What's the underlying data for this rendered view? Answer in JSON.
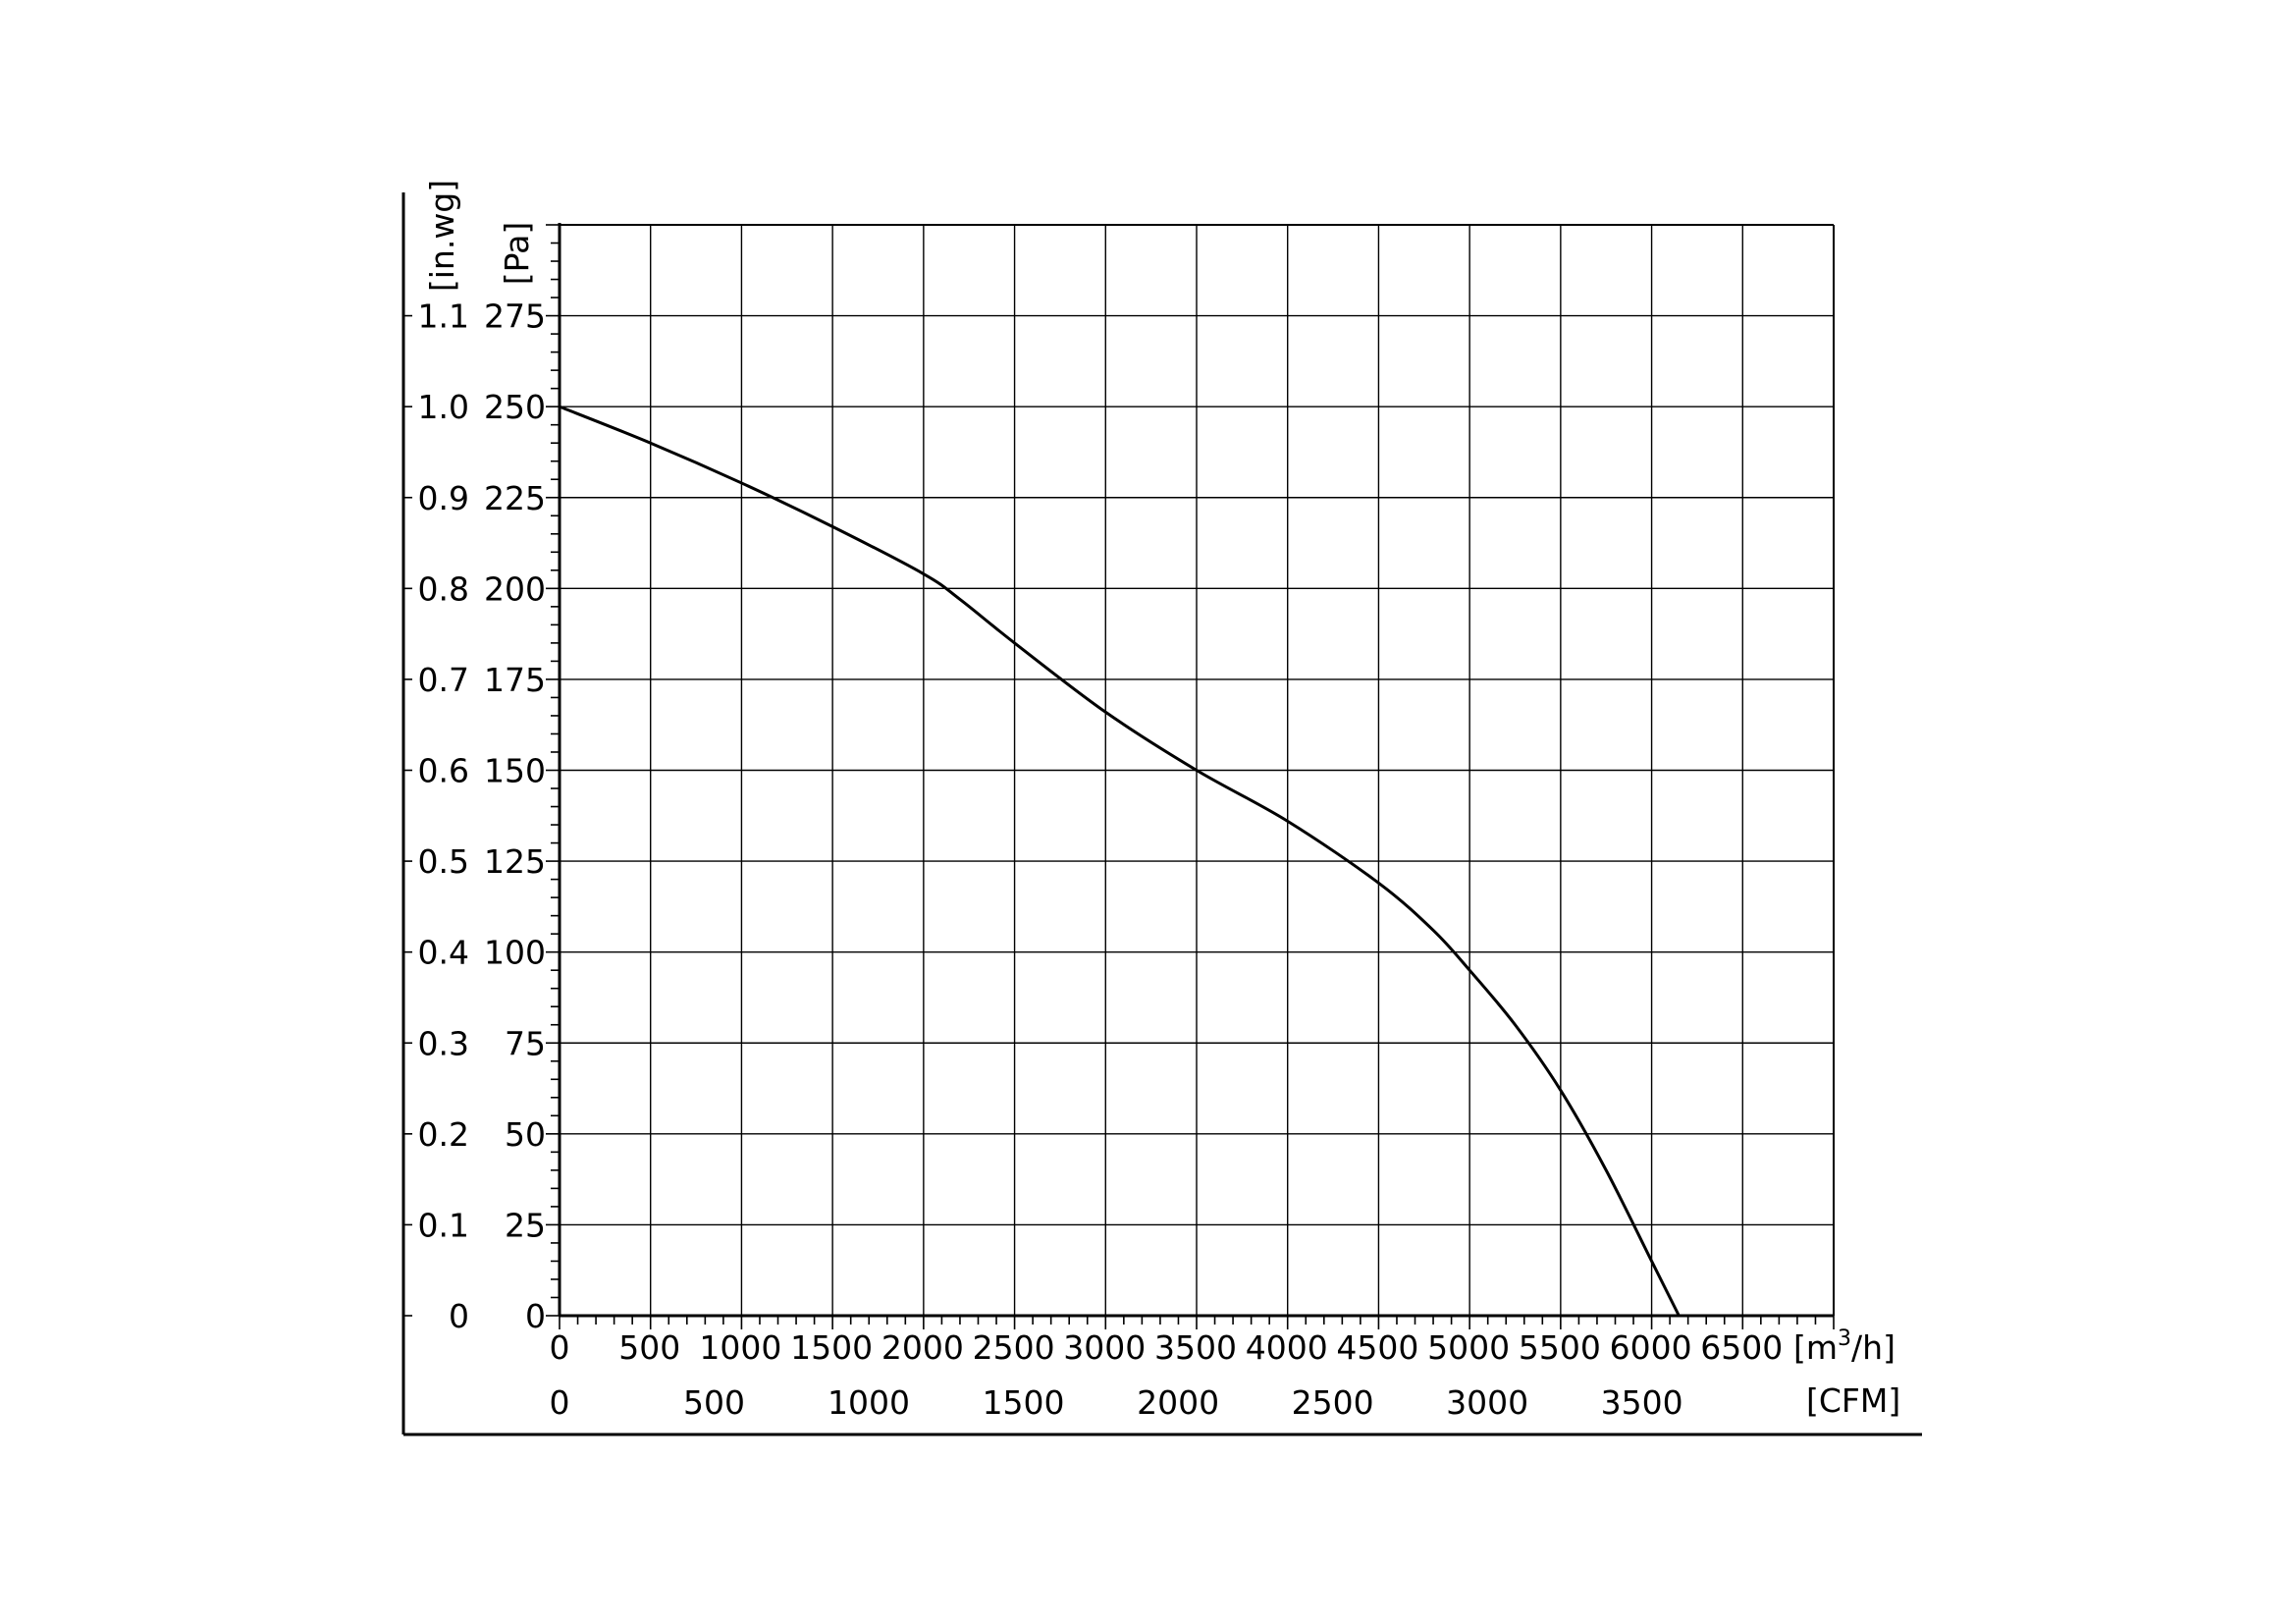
{
  "chart_data": {
    "type": "line",
    "title": "",
    "x_axis": {
      "unit_label": "[m³/h]",
      "unit_text": "[m",
      "unit_sup": "3",
      "unit_tail": "/h]",
      "range": [
        0,
        7000
      ],
      "ticks": [
        0,
        500,
        1000,
        1500,
        2000,
        2500,
        3000,
        3500,
        4000,
        4500,
        5000,
        5500,
        6000,
        6500
      ],
      "tick_labels": [
        "0",
        "500",
        "1000",
        "1500",
        "2000",
        "2500",
        "3000",
        "3500",
        "4000",
        "4500",
        "5000",
        "5500",
        "6000",
        "6500"
      ]
    },
    "x2_axis": {
      "unit_label": "[CFM]",
      "ticks": [
        0,
        500,
        1000,
        1500,
        2000,
        2500,
        3000,
        3500
      ],
      "tick_labels": [
        "0",
        "500",
        "1000",
        "1500",
        "2000",
        "2500",
        "3000",
        "3500"
      ],
      "m3h_per_cfm": 1.699
    },
    "y_axis": {
      "unit_label": "[Pa]",
      "range": [
        0,
        300
      ],
      "ticks": [
        0,
        25,
        50,
        75,
        100,
        125,
        150,
        175,
        200,
        225,
        250,
        275
      ],
      "tick_labels": [
        "0",
        "25",
        "50",
        "75",
        "100",
        "125",
        "150",
        "175",
        "200",
        "225",
        "250",
        "275"
      ]
    },
    "y2_axis": {
      "unit_label": "[in.wg]",
      "tick_labels": [
        "0",
        "0.1",
        "0.2",
        "0.3",
        "0.4",
        "0.5",
        "0.6",
        "0.7",
        "0.8",
        "0.9",
        "1.0",
        "1.1"
      ]
    },
    "grid": true,
    "series": [
      {
        "color": "#000000",
        "x": [
          0,
          500,
          1000,
          1500,
          2000,
          2200,
          2500,
          3000,
          3500,
          4000,
          4500,
          4800,
          5000,
          5250,
          5500,
          5750,
          6000,
          6150
        ],
        "y": [
          250,
          240,
          229,
          217,
          204,
          197,
          185,
          166,
          150,
          136,
          119,
          106,
          95,
          80,
          62,
          40,
          15,
          0
        ]
      }
    ]
  }
}
